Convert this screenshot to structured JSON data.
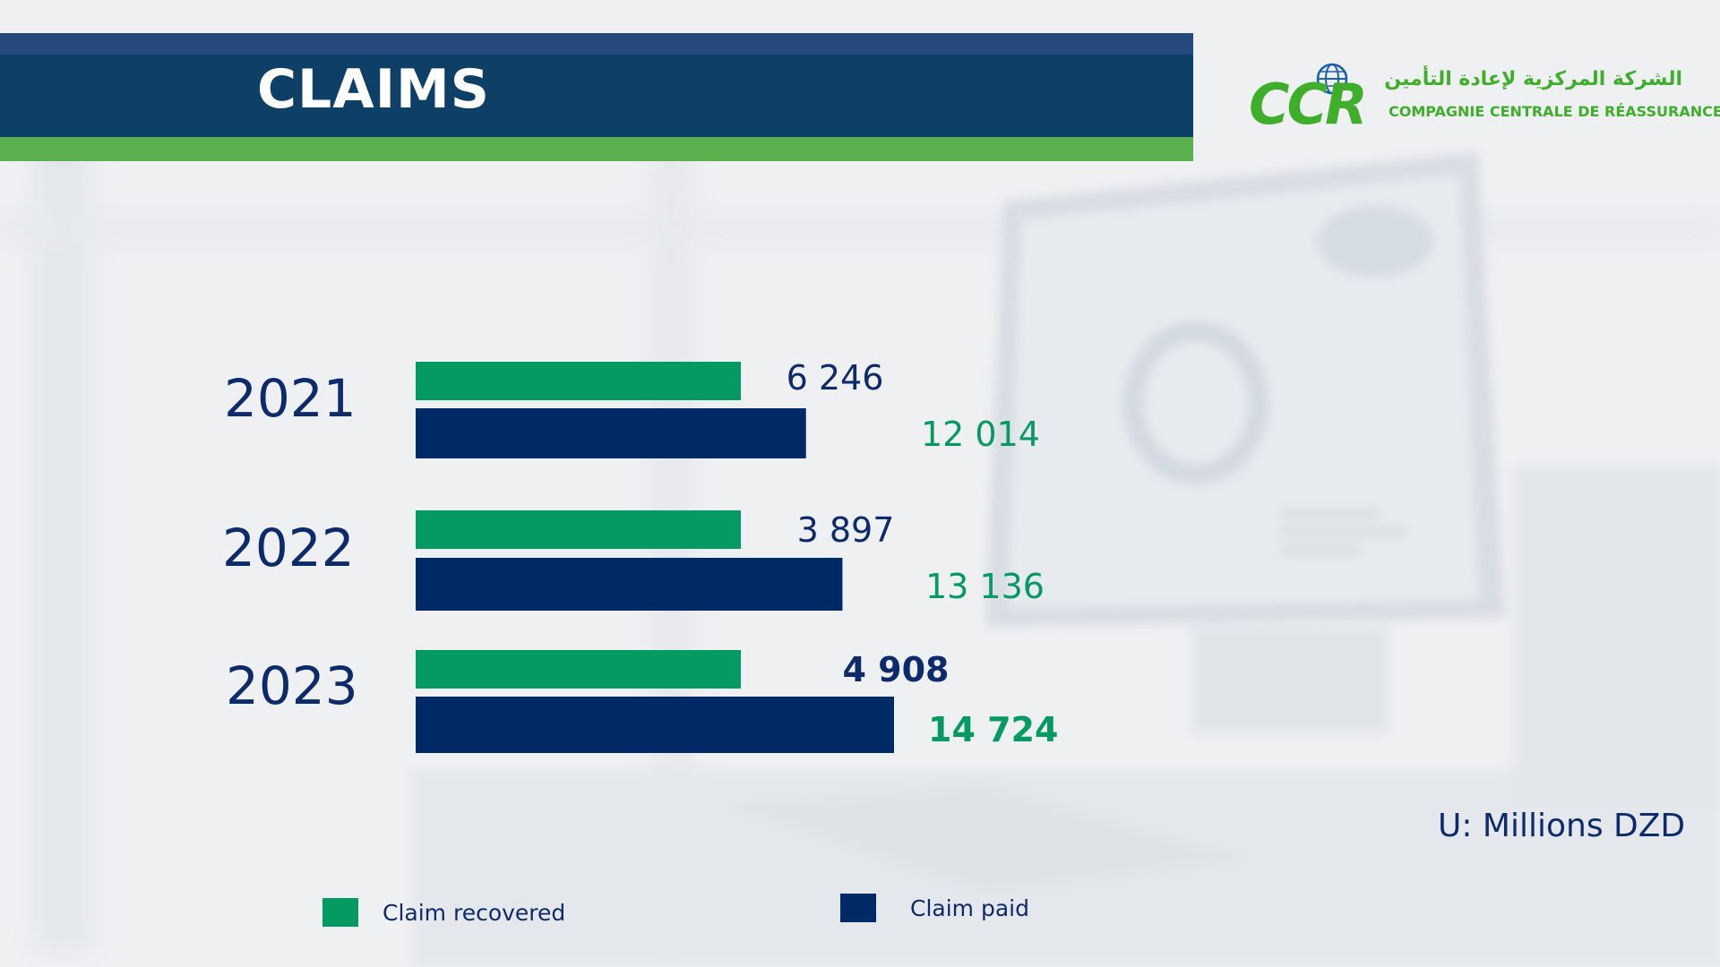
{
  "header": {
    "title": "CLAIMS"
  },
  "logo": {
    "letters": "CCR",
    "arabic_name": "الشركة المركزية لإعادة التأمين",
    "french_name": "COMPAGNIE CENTRALE DE RÉASSURANCE"
  },
  "colors": {
    "recovered": "#049a62",
    "paid": "#002a66",
    "recovered_label": "#049a62",
    "paid_label": "#0d2b6b"
  },
  "unit_note": "U: Millions DZD",
  "chart_data": {
    "type": "bar",
    "orientation": "horizontal",
    "categories": [
      "2021",
      "2022",
      "2023"
    ],
    "series": [
      {
        "name": "Claim recovered",
        "values": [
          6246,
          3897,
          4908
        ],
        "labels": [
          "6 246",
          "3 897",
          "4 908"
        ]
      },
      {
        "name": "Claim paid",
        "values": [
          12014,
          13136,
          14724
        ],
        "labels": [
          "12 014",
          "13 136",
          "14 724"
        ]
      }
    ],
    "highlight_category": "2023",
    "legend_position": "bottom",
    "grid": false
  }
}
